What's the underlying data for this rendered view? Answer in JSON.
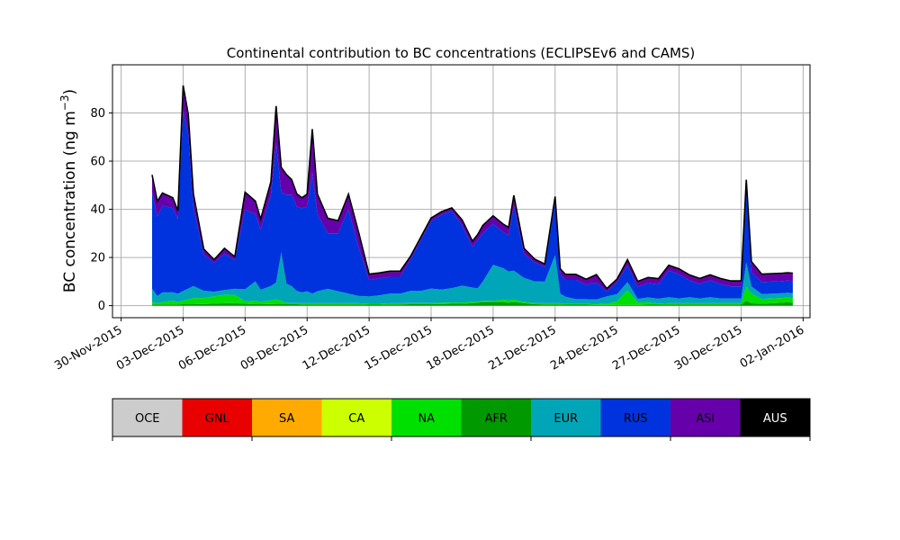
{
  "chart_data": {
    "type": "area",
    "title": "Continental contribution to BC concentrations (ECLIPSEv6 and CAMS)",
    "ylabel_main": "BC concentration (ng m",
    "ylabel_sup": "−3",
    "ylabel_close": ")",
    "ylim": [
      -5,
      100
    ],
    "yticks": [
      0,
      20,
      40,
      60,
      80
    ],
    "x_range": [
      "2015-11-29T14:00",
      "2016-01-02T08:00"
    ],
    "xticks": [
      {
        "date": "2015-11-30",
        "label": "30-Nov-2015"
      },
      {
        "date": "2015-12-03",
        "label": "03-Dec-2015"
      },
      {
        "date": "2015-12-06",
        "label": "06-Dec-2015"
      },
      {
        "date": "2015-12-09",
        "label": "09-Dec-2015"
      },
      {
        "date": "2015-12-12",
        "label": "12-Dec-2015"
      },
      {
        "date": "2015-12-15",
        "label": "15-Dec-2015"
      },
      {
        "date": "2015-12-18",
        "label": "18-Dec-2015"
      },
      {
        "date": "2015-12-21",
        "label": "21-Dec-2015"
      },
      {
        "date": "2015-12-24",
        "label": "24-Dec-2015"
      },
      {
        "date": "2015-12-27",
        "label": "27-Dec-2015"
      },
      {
        "date": "2015-12-30",
        "label": "30-Dec-2015"
      },
      {
        "date": "2016-01-02",
        "label": "02-Jan-2016"
      }
    ],
    "grid": true,
    "stack_order": [
      "AFR",
      "NA",
      "EUR",
      "RUS",
      "ASI",
      "AUS"
    ],
    "x": [
      "2015-12-01T12:00",
      "2015-12-01T18:00",
      "2015-12-02T00:00",
      "2015-12-02T12:00",
      "2015-12-02T18:00",
      "2015-12-03T00:00",
      "2015-12-03T06:00",
      "2015-12-03T12:00",
      "2015-12-04T00:00",
      "2015-12-04T12:00",
      "2015-12-05T00:00",
      "2015-12-05T12:00",
      "2015-12-06T00:00",
      "2015-12-06T12:00",
      "2015-12-06T18:00",
      "2015-12-07T06:00",
      "2015-12-07T12:00",
      "2015-12-07T18:00",
      "2015-12-08T00:00",
      "2015-12-08T06:00",
      "2015-12-08T12:00",
      "2015-12-08T18:00",
      "2015-12-09T00:00",
      "2015-12-09T06:00",
      "2015-12-09T12:00",
      "2015-12-10T00:00",
      "2015-12-10T12:00",
      "2015-12-11T00:00",
      "2015-12-11T12:00",
      "2015-12-12T00:00",
      "2015-12-12T12:00",
      "2015-12-13T00:00",
      "2015-12-13T12:00",
      "2015-12-14T00:00",
      "2015-12-14T12:00",
      "2015-12-15T00:00",
      "2015-12-15T12:00",
      "2015-12-16T00:00",
      "2015-12-16T12:00",
      "2015-12-17T00:00",
      "2015-12-17T06:00",
      "2015-12-17T12:00",
      "2015-12-18T00:00",
      "2015-12-18T12:00",
      "2015-12-18T18:00",
      "2015-12-19T00:00",
      "2015-12-19T12:00",
      "2015-12-20T00:00",
      "2015-12-20T12:00",
      "2015-12-21T00:00",
      "2015-12-21T06:00",
      "2015-12-21T12:00",
      "2015-12-22T00:00",
      "2015-12-22T12:00",
      "2015-12-23T00:00",
      "2015-12-23T12:00",
      "2015-12-24T00:00",
      "2015-12-24T12:00",
      "2015-12-25T00:00",
      "2015-12-25T12:00",
      "2015-12-26T00:00",
      "2015-12-26T12:00",
      "2015-12-27T00:00",
      "2015-12-27T12:00",
      "2015-12-28T00:00",
      "2015-12-28T12:00",
      "2015-12-29T00:00",
      "2015-12-29T12:00",
      "2015-12-30T00:00",
      "2015-12-30T06:00",
      "2015-12-30T12:00",
      "2015-12-31T00:00",
      "2015-12-31T12:00",
      "2016-01-01T00:00",
      "2016-01-01T06:00",
      "2016-01-01T12:00"
    ],
    "series": [
      {
        "name": "AFR",
        "color": "#009900",
        "values": [
          0.5,
          0.5,
          0.5,
          0.5,
          0.5,
          0.6,
          0.6,
          0.6,
          0.7,
          0.8,
          1.0,
          1.0,
          0.8,
          0.6,
          0.6,
          0.7,
          0.6,
          0.6,
          0.6,
          0.6,
          0.6,
          0.5,
          0.5,
          0.5,
          0.5,
          0.5,
          0.5,
          0.5,
          0.5,
          0.4,
          0.4,
          0.5,
          0.5,
          0.6,
          0.6,
          0.6,
          0.7,
          0.8,
          0.8,
          1.0,
          1.2,
          1.5,
          1.5,
          1.5,
          1.2,
          1.5,
          1.0,
          0.6,
          0.5,
          0.5,
          0.5,
          0.4,
          0.4,
          0.4,
          0.3,
          0.3,
          0.3,
          0.3,
          0.3,
          0.4,
          0.4,
          0.5,
          0.5,
          0.5,
          0.5,
          0.5,
          0.5,
          0.5,
          0.5,
          2.0,
          1.0,
          0.8,
          1.0,
          1.2,
          1.4,
          1.2
        ]
      },
      {
        "name": "NA",
        "color": "#00e000",
        "values": [
          1.0,
          0.5,
          1.0,
          1.5,
          1.0,
          1.5,
          2.0,
          2.5,
          2.5,
          3.0,
          3.5,
          3.5,
          1.0,
          1.5,
          1.0,
          1.5,
          2.0,
          1.5,
          0.5,
          0.5,
          0.5,
          0.5,
          0.5,
          0.5,
          0.5,
          0.5,
          0.5,
          0.5,
          0.5,
          0.4,
          0.4,
          0.5,
          0.5,
          0.5,
          0.5,
          0.5,
          0.5,
          0.5,
          0.5,
          0.5,
          0.5,
          0.5,
          0.5,
          1.0,
          1.0,
          1.0,
          0.5,
          0.5,
          0.5,
          0.5,
          0.5,
          0.3,
          0.3,
          0.3,
          0.3,
          0.5,
          1.5,
          6.0,
          1.0,
          1.0,
          0.5,
          0.5,
          0.5,
          0.5,
          0.5,
          0.5,
          0.5,
          0.5,
          0.5,
          6.0,
          4.0,
          2.0,
          2.0,
          2.0,
          2.0,
          2.0
        ]
      },
      {
        "name": "EUR",
        "color": "#00a6b8",
        "values": [
          5.5,
          3.0,
          4.0,
          3.5,
          3.5,
          4.0,
          4.5,
          5.0,
          3.0,
          2.0,
          2.0,
          2.5,
          5.0,
          8.0,
          5.0,
          6.0,
          7.0,
          20.0,
          8.0,
          7.0,
          5.0,
          4.5,
          5.0,
          4.0,
          5.0,
          6.0,
          5.0,
          4.0,
          3.0,
          3.0,
          3.5,
          4.0,
          4.0,
          5.0,
          5.0,
          6.0,
          5.5,
          6.0,
          7.0,
          6.0,
          5.5,
          8.0,
          15.0,
          13.0,
          12.0,
          12.0,
          10.0,
          9.0,
          9.0,
          20.0,
          4.0,
          3.0,
          2.0,
          2.0,
          2.0,
          3.0,
          3.0,
          3.5,
          1.5,
          2.0,
          2.0,
          2.5,
          2.0,
          2.5,
          2.0,
          2.5,
          2.0,
          2.0,
          2.0,
          10.0,
          3.0,
          2.0,
          2.0,
          2.0,
          2.0,
          2.0
        ]
      },
      {
        "name": "RUS",
        "color": "#0033dd",
        "values": [
          40,
          33,
          36,
          35,
          31,
          75,
          64,
          33,
          15,
          12,
          15,
          12,
          33,
          28,
          25,
          38,
          58,
          25,
          37,
          38,
          35,
          35,
          35,
          50,
          32,
          23,
          24,
          35,
          20,
          7,
          7,
          7,
          7,
          13,
          21,
          28,
          31,
          32,
          25,
          17,
          20,
          20,
          17,
          15,
          15,
          27,
          10,
          8,
          6,
          22,
          8,
          7,
          8,
          6,
          7,
          2,
          5,
          7,
          5,
          6,
          6,
          11,
          10,
          7,
          6,
          7,
          6,
          5,
          5,
          30,
          6,
          5,
          5,
          5,
          5,
          5
        ]
      },
      {
        "name": "ASI",
        "color": "#6600aa",
        "values": [
          7,
          6,
          5,
          4,
          3,
          10,
          8,
          5,
          2,
          1,
          2,
          1,
          7,
          5,
          4,
          5,
          15,
          10,
          8,
          6,
          5,
          4,
          5,
          18,
          8,
          6,
          5,
          6,
          6,
          2,
          2,
          2,
          2,
          1,
          1,
          1,
          1,
          1,
          2,
          2,
          2,
          3,
          3,
          3,
          3,
          4,
          2,
          1,
          1,
          2,
          2,
          2,
          2,
          2,
          3,
          1,
          1,
          2,
          2,
          2,
          2,
          2,
          2,
          2,
          2,
          2,
          2,
          2,
          2,
          4,
          4,
          3,
          3,
          3,
          3,
          3
        ]
      },
      {
        "name": "AUS",
        "color": "#000000",
        "values": [
          0.3,
          0.3,
          0.3,
          0.3,
          0.3,
          0.3,
          0.3,
          0.3,
          0.3,
          0.3,
          0.3,
          0.3,
          0.3,
          0.3,
          0.3,
          0.3,
          0.3,
          0.3,
          0.3,
          0.3,
          0.3,
          0.3,
          0.3,
          0.3,
          0.3,
          0.3,
          0.3,
          0.3,
          0.3,
          0.3,
          0.3,
          0.3,
          0.3,
          0.3,
          0.3,
          0.3,
          0.3,
          0.3,
          0.3,
          0.3,
          0.3,
          0.3,
          0.3,
          0.3,
          0.3,
          0.3,
          0.3,
          0.3,
          0.3,
          0.3,
          0.3,
          0.3,
          0.3,
          0.3,
          0.3,
          0.3,
          0.3,
          0.3,
          0.3,
          0.3,
          0.3,
          0.3,
          0.3,
          0.3,
          0.3,
          0.3,
          0.3,
          0.3,
          0.3,
          0.3,
          0.3,
          0.3,
          0.3,
          0.3,
          0.3,
          0.3
        ]
      }
    ],
    "colorbar": [
      {
        "label": "OCE",
        "color": "#cccccc",
        "text_color": "#000000"
      },
      {
        "label": "GNL",
        "color": "#e80000",
        "text_color": "#000000"
      },
      {
        "label": "SA",
        "color": "#ffaa00",
        "text_color": "#000000"
      },
      {
        "label": "CA",
        "color": "#ccff00",
        "text_color": "#000000"
      },
      {
        "label": "NA",
        "color": "#00e000",
        "text_color": "#000000"
      },
      {
        "label": "AFR",
        "color": "#009900",
        "text_color": "#000000"
      },
      {
        "label": "EUR",
        "color": "#00a6b8",
        "text_color": "#000000"
      },
      {
        "label": "RUS",
        "color": "#0033dd",
        "text_color": "#000000"
      },
      {
        "label": "ASI",
        "color": "#6600aa",
        "text_color": "#000000"
      },
      {
        "label": "AUS",
        "color": "#000000",
        "text_color": "#ffffff"
      }
    ]
  }
}
